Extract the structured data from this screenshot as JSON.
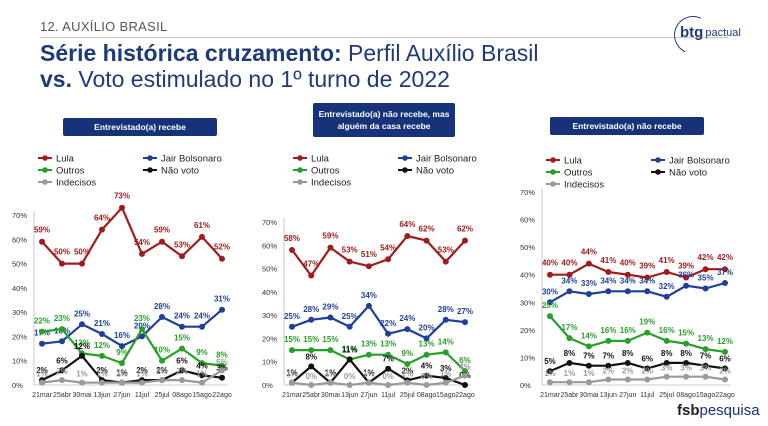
{
  "header": {
    "section": "12. AUXÍLIO BRASIL",
    "title_bold_1": "Série histórica cruzamento:",
    "title_rest_1": " Perfil Auxílio Brasil",
    "title_bold_2": "vs.",
    "title_rest_2": " Voto estimulado no 1º turno de 2022"
  },
  "logo": {
    "part1": "btg",
    "part2": "pactual"
  },
  "footer": {
    "part1": "fsb",
    "part2": "pesquisa"
  },
  "colors": {
    "lula": "#a01c1c",
    "bolsonaro": "#1f3f9a",
    "outros": "#27a027",
    "nao_voto": "#111111",
    "indecisos": "#9a9a9a",
    "label_bg": "#16337a"
  },
  "chart_data": [
    {
      "type": "line",
      "panel_label": "Entrevistado(a) recebe",
      "x": [
        "21mar",
        "25abr",
        "30mai",
        "13jun",
        "27jun",
        "11jul",
        "25jul",
        "08ago",
        "15ago",
        "22ago"
      ],
      "yticks": [
        "0%",
        "10%",
        "20%",
        "30%",
        "40%",
        "50%",
        "60%",
        "70%"
      ],
      "ylim": [
        0,
        70
      ],
      "legend": [
        "Lula",
        "Jair Bolsonaro",
        "Outros",
        "Não voto",
        "Indecisos"
      ],
      "series": [
        {
          "name": "Lula",
          "key": "lula",
          "values": [
            59,
            50,
            50,
            64,
            73,
            54,
            59,
            53,
            61,
            52
          ],
          "labels": [
            "59%",
            "50%",
            "50%",
            "64%",
            "73%",
            "54%",
            "59%",
            "53%",
            "61%",
            "52%"
          ]
        },
        {
          "name": "Jair Bolsonaro",
          "key": "bolsonaro",
          "values": [
            17,
            18,
            25,
            21,
            16,
            20,
            28,
            24,
            24,
            31
          ],
          "labels": [
            "17%",
            "18%",
            "25%",
            "21%",
            "16%",
            "20%",
            "28%",
            "24%",
            "24%",
            "31%"
          ]
        },
        {
          "name": "Outros",
          "key": "outros",
          "values": [
            22,
            23,
            13,
            12,
            9,
            23,
            10,
            15,
            9,
            8
          ],
          "labels": [
            "22%",
            "23%",
            "13%",
            "12%",
            "9%",
            "23%",
            "10%",
            "15%",
            "9%",
            "8%"
          ]
        },
        {
          "name": "Não voto",
          "key": "nao_voto",
          "values": [
            2,
            6,
            12,
            2,
            1,
            2,
            2,
            6,
            4,
            3
          ],
          "labels": [
            "2%",
            "6%",
            "12%",
            "2%",
            "1%",
            "2%",
            "2%",
            "6%",
            "4%",
            "3%"
          ]
        },
        {
          "name": "Indecisos",
          "key": "indecisos",
          "values": [
            1,
            2,
            1,
            1,
            1,
            1,
            2,
            2,
            1,
            6
          ],
          "labels": [
            "1%",
            "2%",
            "1%",
            "1%",
            "1%",
            "1%",
            "2%",
            "2%",
            "1%",
            "6%"
          ]
        }
      ]
    },
    {
      "type": "line",
      "panel_label": "Entrevistado(a) não recebe, mas alguém da casa recebe",
      "x": [
        "21mar",
        "25abr",
        "30mai",
        "13jun",
        "27jun",
        "11jul",
        "25jul",
        "08ago",
        "15ago",
        "22ago"
      ],
      "yticks": [
        "0%",
        "10%",
        "20%",
        "30%",
        "40%",
        "50%",
        "60%",
        "70%"
      ],
      "ylim": [
        0,
        70
      ],
      "legend": [
        "Lula",
        "Jair Bolsonaro",
        "Outros",
        "Não voto",
        "Indecisos"
      ],
      "series": [
        {
          "name": "Lula",
          "key": "lula",
          "values": [
            58,
            47,
            59,
            53,
            51,
            54,
            64,
            62,
            53,
            62
          ],
          "labels": [
            "58%",
            "47%",
            "59%",
            "53%",
            "51%",
            "54%",
            "64%",
            "62%",
            "53%",
            "62%"
          ]
        },
        {
          "name": "Jair Bolsonaro",
          "key": "bolsonaro",
          "values": [
            25,
            28,
            29,
            25,
            34,
            22,
            24,
            20,
            28,
            27
          ],
          "labels": [
            "25%",
            "28%",
            "29%",
            "25%",
            "34%",
            "22%",
            "24%",
            "20%",
            "28%",
            "27%"
          ]
        },
        {
          "name": "Outros",
          "key": "outros",
          "values": [
            15,
            15,
            15,
            11,
            13,
            13,
            9,
            13,
            14,
            6
          ],
          "labels": [
            "15%",
            "15%",
            "15%",
            "11%",
            "13%",
            "13%",
            "9%",
            "13%",
            "14%",
            "6%"
          ]
        },
        {
          "name": "Não voto",
          "key": "nao_voto",
          "values": [
            1,
            8,
            1,
            11,
            1,
            7,
            2,
            4,
            3,
            0
          ],
          "labels": [
            "1%",
            "8%",
            "1%",
            "11%",
            "1%",
            "7%",
            "2%",
            "4%",
            "3%",
            "0%"
          ]
        },
        {
          "name": "Indecisos",
          "key": "indecisos",
          "values": [
            1,
            0,
            1,
            0,
            1,
            0,
            1,
            0,
            1,
            4
          ],
          "labels": [
            "1%",
            "0%",
            "1%",
            "0%",
            "1%",
            "0%",
            "1%",
            "0%",
            "1%",
            "4%"
          ]
        }
      ]
    },
    {
      "type": "line",
      "panel_label": "Entrevistado(a) não recebe",
      "x": [
        "21mar",
        "25abr",
        "30mai",
        "13jun",
        "27jun",
        "11jul",
        "25jul",
        "08ago",
        "15ago",
        "22ago"
      ],
      "yticks": [
        "0%",
        "10%",
        "20%",
        "30%",
        "40%",
        "50%",
        "60%",
        "70%"
      ],
      "ylim": [
        0,
        70
      ],
      "legend": [
        "Lula",
        "Jair Bolsonaro",
        "Outros",
        "Não voto",
        "Indecisos"
      ],
      "series": [
        {
          "name": "Lula",
          "key": "lula",
          "values": [
            40,
            40,
            44,
            41,
            40,
            39,
            41,
            39,
            42,
            42
          ],
          "labels": [
            "40%",
            "40%",
            "44%",
            "41%",
            "40%",
            "39%",
            "41%",
            "39%",
            "42%",
            "42%"
          ]
        },
        {
          "name": "Jair Bolsonaro",
          "key": "bolsonaro",
          "values": [
            30,
            34,
            33,
            34,
            34,
            34,
            32,
            36,
            35,
            37
          ],
          "labels": [
            "30%",
            "34%",
            "33%",
            "34%",
            "34%",
            "34%",
            "32%",
            "36%",
            "35%",
            "37%"
          ]
        },
        {
          "name": "Outros",
          "key": "outros",
          "values": [
            25,
            17,
            14,
            16,
            16,
            19,
            16,
            15,
            13,
            12
          ],
          "labels": [
            "25%",
            "17%",
            "14%",
            "16%",
            "16%",
            "19%",
            "16%",
            "15%",
            "13%",
            "12%"
          ]
        },
        {
          "name": "Não voto",
          "key": "nao_voto",
          "values": [
            5,
            8,
            7,
            7,
            8,
            6,
            8,
            8,
            7,
            6
          ],
          "labels": [
            "5%",
            "8%",
            "7%",
            "7%",
            "8%",
            "6%",
            "8%",
            "8%",
            "7%",
            "6%"
          ]
        },
        {
          "name": "Indecisos",
          "key": "indecisos",
          "values": [
            1,
            1,
            1,
            2,
            2,
            2,
            3,
            3,
            3,
            2
          ],
          "labels": [
            "1%",
            "1%",
            "1%",
            "2%",
            "2%",
            "2%",
            "3%",
            "3%",
            "3%",
            "2%"
          ]
        }
      ]
    }
  ]
}
